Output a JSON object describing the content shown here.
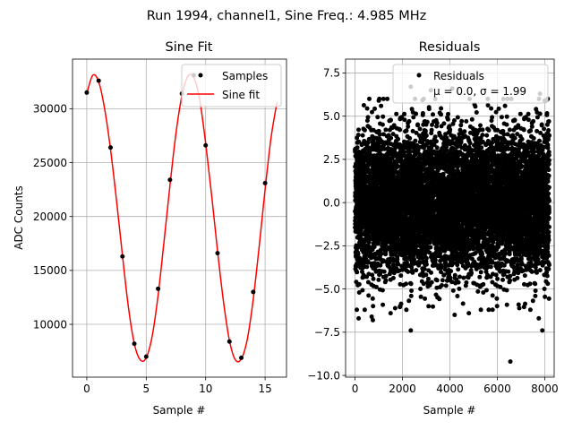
{
  "suptitle": "Run 1994, channel1, Sine Freq.: 4.985 MHz",
  "chart_data": [
    {
      "type": "line",
      "title": "Sine Fit",
      "xlabel": "Sample #",
      "ylabel": "ADC Counts",
      "xlim": [
        -1.2,
        16.8
      ],
      "ylim": [
        5100,
        34600
      ],
      "xticks": [
        0,
        5,
        10,
        15
      ],
      "yticks": [
        10000,
        15000,
        20000,
        25000,
        30000
      ],
      "grid": true,
      "legend_position": "upper right",
      "series": [
        {
          "name": "Samples",
          "kind": "scatter",
          "color": "#000000",
          "x": [
            0,
            1,
            2,
            3,
            4,
            5,
            6,
            7,
            8,
            9,
            10,
            11,
            12,
            13,
            14,
            15
          ],
          "y": [
            31500,
            32600,
            26400,
            16300,
            8200,
            7000,
            13300,
            23400,
            31400,
            33100,
            26600,
            16600,
            8400,
            6900,
            13000,
            23100
          ]
        },
        {
          "name": "Sine fit",
          "kind": "line",
          "color": "#ff0000",
          "x": [
            0,
            0.5,
            1,
            1.5,
            2,
            2.5,
            3,
            3.5,
            4,
            4.5,
            5,
            5.5,
            6,
            6.5,
            7,
            7.5,
            8,
            8.5,
            9,
            9.5,
            10,
            10.5,
            11,
            11.5,
            12,
            12.5,
            13,
            13.5,
            14,
            14.5,
            15,
            15.5,
            16
          ],
          "y": [
            31400,
            33100,
            32500,
            30000,
            26200,
            21500,
            16400,
            11600,
            8200,
            6700,
            6900,
            8900,
            12700,
            17700,
            22900,
            27700,
            31200,
            33000,
            32900,
            30800,
            26800,
            22000,
            16800,
            12100,
            8500,
            6700,
            6800,
            8600,
            12300,
            17200,
            22500,
            27300,
            30600
          ]
        }
      ]
    },
    {
      "type": "scatter",
      "title": "Residuals",
      "xlabel": "Sample #",
      "ylabel": "",
      "xlim": [
        -400,
        8400
      ],
      "ylim": [
        -10.1,
        8.3
      ],
      "xticks": [
        0,
        2000,
        4000,
        6000,
        8000
      ],
      "yticks": [
        -10.0,
        -7.5,
        -5.0,
        -2.5,
        0.0,
        2.5,
        5.0,
        7.5
      ],
      "ytick_labels": [
        "−10.0",
        "−7.5",
        "−5.0",
        "−2.5",
        "0.0",
        "2.5",
        "5.0",
        "7.5"
      ],
      "grid": true,
      "legend_position": "upper right",
      "legend_label": "Residuals",
      "legend_stats": "μ = 0.0, σ = 1.99",
      "series": [
        {
          "name": "Residuals",
          "color": "#000000",
          "n_points": 8192,
          "mean": 0.0,
          "sigma": 1.99,
          "x_range": [
            0,
            8191
          ],
          "outliers": [
            {
              "x": 2350,
              "y": 6.7
            },
            {
              "x": 3200,
              "y": 6.5
            },
            {
              "x": 4100,
              "y": 6.6
            },
            {
              "x": 2700,
              "y": 7.4
            },
            {
              "x": 6550,
              "y": -9.2
            },
            {
              "x": 2350,
              "y": -7.4
            },
            {
              "x": 7900,
              "y": -7.4
            },
            {
              "x": 150,
              "y": -6.7
            },
            {
              "x": 700,
              "y": -6.6
            },
            {
              "x": 750,
              "y": -6.8
            },
            {
              "x": 1500,
              "y": -6.4
            },
            {
              "x": 3100,
              "y": -6.0
            },
            {
              "x": 4200,
              "y": -6.5
            },
            {
              "x": 4800,
              "y": -6.4
            },
            {
              "x": 5800,
              "y": -6.2
            },
            {
              "x": 7750,
              "y": -6.7
            },
            {
              "x": 7800,
              "y": 6.3
            },
            {
              "x": 1000,
              "y": 5.9
            },
            {
              "x": 600,
              "y": 6.0
            },
            {
              "x": 5600,
              "y": 6.0
            },
            {
              "x": 8000,
              "y": 5.9
            },
            {
              "x": 1900,
              "y": -6.0
            },
            {
              "x": 6900,
              "y": -5.9
            }
          ]
        }
      ]
    }
  ]
}
